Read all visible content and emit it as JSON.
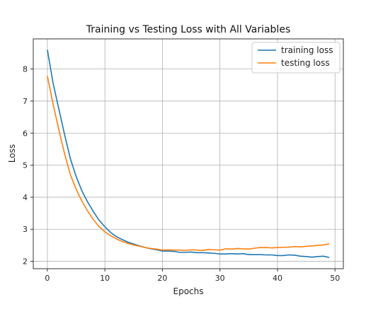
{
  "chart_data": {
    "type": "line",
    "title": "Training vs Testing Loss with All Variables",
    "xlabel": "Epochs",
    "ylabel": "Loss",
    "xlim": [
      -2.45,
      51.45
    ],
    "ylim": [
      1.77,
      8.94
    ],
    "xticks": [
      0,
      10,
      20,
      30,
      40,
      50
    ],
    "yticks": [
      2,
      3,
      4,
      5,
      6,
      7,
      8
    ],
    "grid": true,
    "legend_position": "top-right",
    "x": [
      0,
      1,
      2,
      3,
      4,
      5,
      6,
      7,
      8,
      9,
      10,
      11,
      12,
      13,
      14,
      15,
      16,
      17,
      18,
      19,
      20,
      21,
      22,
      23,
      24,
      25,
      26,
      27,
      28,
      29,
      30,
      31,
      32,
      33,
      34,
      35,
      36,
      37,
      38,
      39,
      40,
      41,
      42,
      43,
      44,
      45,
      46,
      47,
      48,
      49
    ],
    "series": [
      {
        "name": "training loss",
        "color": "#1f77b4",
        "values": [
          8.6,
          7.55,
          6.75,
          5.95,
          5.2,
          4.65,
          4.2,
          3.85,
          3.55,
          3.28,
          3.08,
          2.9,
          2.77,
          2.68,
          2.6,
          2.54,
          2.48,
          2.43,
          2.39,
          2.36,
          2.32,
          2.32,
          2.31,
          2.28,
          2.28,
          2.29,
          2.27,
          2.27,
          2.26,
          2.25,
          2.23,
          2.23,
          2.24,
          2.23,
          2.24,
          2.21,
          2.21,
          2.21,
          2.2,
          2.2,
          2.18,
          2.18,
          2.2,
          2.19,
          2.16,
          2.15,
          2.13,
          2.15,
          2.16,
          2.12
        ]
      },
      {
        "name": "testing loss",
        "color": "#ff7f0e",
        "values": [
          7.78,
          6.9,
          6.1,
          5.35,
          4.7,
          4.25,
          3.88,
          3.57,
          3.3,
          3.08,
          2.92,
          2.8,
          2.7,
          2.62,
          2.56,
          2.51,
          2.47,
          2.43,
          2.4,
          2.38,
          2.35,
          2.36,
          2.35,
          2.35,
          2.34,
          2.36,
          2.35,
          2.34,
          2.37,
          2.36,
          2.35,
          2.39,
          2.38,
          2.4,
          2.39,
          2.38,
          2.41,
          2.43,
          2.43,
          2.42,
          2.43,
          2.44,
          2.44,
          2.46,
          2.45,
          2.47,
          2.48,
          2.5,
          2.51,
          2.55
        ]
      }
    ]
  }
}
